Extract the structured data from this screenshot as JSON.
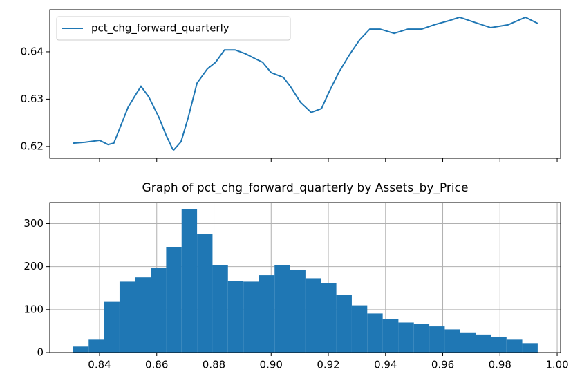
{
  "chart_data": [
    {
      "type": "line",
      "x": [
        0.8308,
        0.835,
        0.84,
        0.843,
        0.845,
        0.85,
        0.8525,
        0.8545,
        0.8572,
        0.8608,
        0.8632,
        0.8656,
        0.866,
        0.8685,
        0.871,
        0.8741,
        0.8777,
        0.8806,
        0.8837,
        0.8874,
        0.891,
        0.8946,
        0.897,
        0.9,
        0.9043,
        0.9067,
        0.9103,
        0.914,
        0.9176,
        0.92,
        0.9236,
        0.9273,
        0.9309,
        0.9345,
        0.9381,
        0.943,
        0.9478,
        0.9526,
        0.9575,
        0.9623,
        0.9659,
        0.9708,
        0.9768,
        0.9828,
        0.9889,
        0.9932
      ],
      "series": [
        {
          "name": "pct_chg_forward_quarterly",
          "color": "#1f77b4",
          "values": [
            0.6207,
            0.6209,
            0.6213,
            0.6204,
            0.6207,
            0.6283,
            0.6308,
            0.6327,
            0.6305,
            0.6261,
            0.6225,
            0.6194,
            0.6193,
            0.621,
            0.6261,
            0.6334,
            0.6364,
            0.6378,
            0.6404,
            0.6404,
            0.6396,
            0.6385,
            0.6378,
            0.6356,
            0.6346,
            0.6327,
            0.6293,
            0.6272,
            0.628,
            0.6312,
            0.6356,
            0.6393,
            0.6425,
            0.6448,
            0.6448,
            0.6439,
            0.6448,
            0.6448,
            0.6458,
            0.6466,
            0.6473,
            0.6463,
            0.6451,
            0.6457,
            0.6473,
            0.646
          ]
        }
      ],
      "xlim": [
        0.8226,
        1.0012
      ],
      "xticks": [
        0.84,
        0.86,
        0.88,
        0.9,
        0.92,
        0.94,
        0.96,
        0.98,
        1.0
      ],
      "ylim": [
        0.6175,
        0.6489
      ],
      "yticks": [
        0.62,
        0.63,
        0.64
      ],
      "grid": false,
      "legend": "upper left"
    },
    {
      "type": "histogram",
      "title": "Graph of pct_chg_forward_quarterly by Assets_by_Price",
      "bins": [
        0.8308,
        0.8362,
        0.8416,
        0.847,
        0.8525,
        0.8579,
        0.8633,
        0.8687,
        0.8741,
        0.8795,
        0.8849,
        0.8903,
        0.8958,
        0.9012,
        0.9066,
        0.912,
        0.9174,
        0.9228,
        0.9282,
        0.9336,
        0.939,
        0.9445,
        0.9499,
        0.9553,
        0.9607,
        0.9661,
        0.9715,
        0.9769,
        0.9823,
        0.9878,
        0.9932
      ],
      "values": [
        14,
        30,
        118,
        165,
        175,
        197,
        245,
        333,
        275,
        203,
        167,
        165,
        180,
        204,
        193,
        173,
        162,
        135,
        110,
        91,
        78,
        70,
        67,
        61,
        54,
        47,
        42,
        37,
        30,
        22
      ],
      "color": "#1f77b4",
      "xlim": [
        0.8226,
        1.0012
      ],
      "xticks": [
        0.84,
        0.86,
        0.88,
        {
          "value": 0.9,
          "label": "0.90"
        },
        0.92,
        0.94,
        0.96,
        0.98,
        {
          "value": 1.0,
          "label": "1.00"
        }
      ],
      "ylim": [
        0,
        349
      ],
      "yticks": [
        0,
        100,
        200,
        300
      ],
      "grid": true
    }
  ]
}
